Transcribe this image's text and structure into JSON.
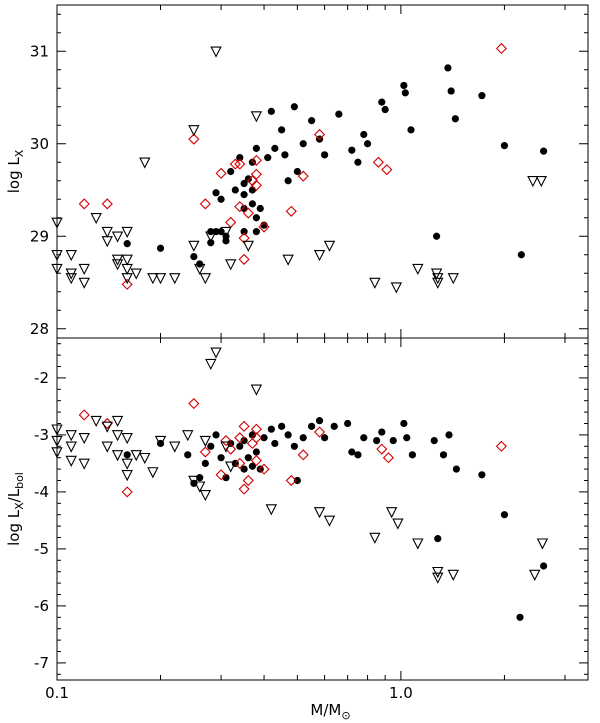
{
  "chart_data": [
    {
      "panel": "top",
      "type": "scatter",
      "xlabel": "M/M⊙",
      "ylabel": "log L_X",
      "xscale": "log",
      "xlim": [
        0.1,
        3.5
      ],
      "ylim": [
        27.9,
        31.5
      ],
      "yticks": [
        28,
        29,
        30,
        31
      ],
      "ytick_labels": [
        "28",
        "29",
        "30",
        "31"
      ],
      "series": [
        {
          "marker": "filled-circle",
          "color": "#000000",
          "points": [
            [
              0.16,
              28.92
            ],
            [
              0.2,
              28.87
            ],
            [
              0.25,
              28.78
            ],
            [
              0.26,
              28.7
            ],
            [
              0.28,
              29.05
            ],
            [
              0.28,
              28.93
            ],
            [
              0.29,
              29.47
            ],
            [
              0.29,
              29.05
            ],
            [
              0.3,
              29.4
            ],
            [
              0.3,
              29.05
            ],
            [
              0.31,
              29.0
            ],
            [
              0.31,
              28.95
            ],
            [
              0.32,
              29.7
            ],
            [
              0.33,
              29.5
            ],
            [
              0.34,
              29.85
            ],
            [
              0.35,
              29.57
            ],
            [
              0.35,
              29.45
            ],
            [
              0.35,
              29.3
            ],
            [
              0.35,
              29.05
            ],
            [
              0.36,
              29.62
            ],
            [
              0.37,
              29.8
            ],
            [
              0.37,
              29.5
            ],
            [
              0.37,
              29.35
            ],
            [
              0.38,
              29.2
            ],
            [
              0.38,
              29.95
            ],
            [
              0.39,
              29.3
            ],
            [
              0.4,
              29.12
            ],
            [
              0.38,
              29.05
            ],
            [
              0.41,
              29.85
            ],
            [
              0.42,
              30.35
            ],
            [
              0.43,
              29.95
            ],
            [
              0.45,
              30.15
            ],
            [
              0.46,
              29.88
            ],
            [
              0.47,
              29.6
            ],
            [
              0.49,
              30.4
            ],
            [
              0.5,
              29.7
            ],
            [
              0.52,
              30.0
            ],
            [
              0.55,
              30.25
            ],
            [
              0.58,
              30.05
            ],
            [
              0.6,
              29.88
            ],
            [
              0.66,
              30.32
            ],
            [
              0.72,
              29.93
            ],
            [
              0.75,
              29.8
            ],
            [
              0.78,
              30.1
            ],
            [
              0.8,
              30.0
            ],
            [
              0.88,
              30.45
            ],
            [
              0.9,
              30.37
            ],
            [
              1.02,
              30.63
            ],
            [
              1.03,
              30.55
            ],
            [
              1.07,
              30.15
            ],
            [
              1.27,
              29.0
            ],
            [
              1.37,
              30.82
            ],
            [
              1.4,
              30.57
            ],
            [
              1.44,
              30.27
            ],
            [
              1.72,
              30.52
            ],
            [
              2.0,
              29.98
            ],
            [
              2.24,
              28.8
            ],
            [
              2.6,
              29.92
            ]
          ]
        },
        {
          "marker": "open-diamond",
          "color": "#d40000",
          "points": [
            [
              0.12,
              29.35
            ],
            [
              0.14,
              29.35
            ],
            [
              0.16,
              28.48
            ],
            [
              0.25,
              30.05
            ],
            [
              0.27,
              29.35
            ],
            [
              0.3,
              29.68
            ],
            [
              0.32,
              29.15
            ],
            [
              0.33,
              29.78
            ],
            [
              0.34,
              29.78
            ],
            [
              0.34,
              29.32
            ],
            [
              0.35,
              28.98
            ],
            [
              0.35,
              28.75
            ],
            [
              0.36,
              29.25
            ],
            [
              0.37,
              29.6
            ],
            [
              0.38,
              29.55
            ],
            [
              0.38,
              29.82
            ],
            [
              0.38,
              29.67
            ],
            [
              0.4,
              29.1
            ],
            [
              0.48,
              29.27
            ],
            [
              0.52,
              29.65
            ],
            [
              0.58,
              30.1
            ],
            [
              0.86,
              29.8
            ],
            [
              0.91,
              29.72
            ],
            [
              1.96,
              31.03
            ]
          ]
        },
        {
          "marker": "open-triangle-down",
          "color": "#000000",
          "points": [
            [
              0.1,
              29.15
            ],
            [
              0.1,
              28.8
            ],
            [
              0.1,
              28.65
            ],
            [
              0.11,
              28.6
            ],
            [
              0.11,
              28.8
            ],
            [
              0.11,
              28.55
            ],
            [
              0.12,
              28.65
            ],
            [
              0.12,
              28.5
            ],
            [
              0.13,
              29.2
            ],
            [
              0.14,
              29.05
            ],
            [
              0.14,
              28.95
            ],
            [
              0.15,
              29.0
            ],
            [
              0.15,
              28.75
            ],
            [
              0.15,
              28.7
            ],
            [
              0.16,
              29.05
            ],
            [
              0.16,
              28.75
            ],
            [
              0.16,
              28.65
            ],
            [
              0.16,
              28.55
            ],
            [
              0.17,
              28.6
            ],
            [
              0.18,
              29.8
            ],
            [
              0.19,
              28.55
            ],
            [
              0.2,
              28.55
            ],
            [
              0.22,
              28.55
            ],
            [
              0.25,
              30.15
            ],
            [
              0.25,
              28.9
            ],
            [
              0.26,
              28.65
            ],
            [
              0.27,
              28.55
            ],
            [
              0.28,
              29.0
            ],
            [
              0.29,
              31.0
            ],
            [
              0.31,
              29.05
            ],
            [
              0.32,
              28.7
            ],
            [
              0.36,
              28.9
            ],
            [
              0.38,
              30.3
            ],
            [
              0.47,
              28.75
            ],
            [
              0.58,
              28.8
            ],
            [
              0.62,
              28.9
            ],
            [
              0.84,
              28.5
            ],
            [
              0.97,
              28.45
            ],
            [
              1.12,
              28.65
            ],
            [
              1.27,
              28.6
            ],
            [
              1.28,
              28.55
            ],
            [
              1.28,
              28.5
            ],
            [
              1.42,
              28.55
            ],
            [
              2.42,
              29.6
            ],
            [
              2.56,
              29.6
            ]
          ]
        }
      ]
    },
    {
      "panel": "bottom",
      "type": "scatter",
      "xlabel": "M/M⊙",
      "ylabel": "log L_X/L_bol",
      "xscale": "log",
      "xlim": [
        0.1,
        3.5
      ],
      "ylim": [
        -7.3,
        -1.3
      ],
      "yticks": [
        -7,
        -6,
        -5,
        -4,
        -3,
        -2
      ],
      "ytick_labels": [
        "-7",
        "-6",
        "-5",
        "-4",
        "-3",
        "-2"
      ],
      "xticks": [
        0.1,
        1.0
      ],
      "xtick_labels": [
        "0.1",
        "1.0"
      ],
      "series": [
        {
          "marker": "filled-circle",
          "color": "#000000",
          "points": [
            [
              0.16,
              -3.35
            ],
            [
              0.2,
              -3.15
            ],
            [
              0.24,
              -3.35
            ],
            [
              0.25,
              -3.85
            ],
            [
              0.26,
              -3.75
            ],
            [
              0.27,
              -3.5
            ],
            [
              0.28,
              -3.2
            ],
            [
              0.29,
              -3.0
            ],
            [
              0.3,
              -3.4
            ],
            [
              0.31,
              -3.75
            ],
            [
              0.32,
              -3.15
            ],
            [
              0.33,
              -3.5
            ],
            [
              0.34,
              -3.2
            ],
            [
              0.35,
              -3.1
            ],
            [
              0.35,
              -3.6
            ],
            [
              0.36,
              -3.4
            ],
            [
              0.37,
              -3.55
            ],
            [
              0.37,
              -3.0
            ],
            [
              0.38,
              -3.3
            ],
            [
              0.39,
              -3.6
            ],
            [
              0.4,
              -3.05
            ],
            [
              0.42,
              -2.9
            ],
            [
              0.43,
              -3.15
            ],
            [
              0.45,
              -2.85
            ],
            [
              0.47,
              -3.0
            ],
            [
              0.49,
              -3.2
            ],
            [
              0.5,
              -3.8
            ],
            [
              0.52,
              -3.05
            ],
            [
              0.55,
              -2.85
            ],
            [
              0.58,
              -2.75
            ],
            [
              0.6,
              -3.05
            ],
            [
              0.64,
              -2.85
            ],
            [
              0.7,
              -2.8
            ],
            [
              0.72,
              -3.3
            ],
            [
              0.75,
              -3.35
            ],
            [
              0.78,
              -3.05
            ],
            [
              0.85,
              -3.1
            ],
            [
              0.88,
              -2.95
            ],
            [
              0.95,
              -3.1
            ],
            [
              1.02,
              -2.8
            ],
            [
              1.04,
              -3.05
            ],
            [
              1.08,
              -3.35
            ],
            [
              1.25,
              -3.1
            ],
            [
              1.28,
              -4.82
            ],
            [
              1.33,
              -3.35
            ],
            [
              1.38,
              -3.0
            ],
            [
              1.45,
              -3.6
            ],
            [
              1.72,
              -3.7
            ],
            [
              2.0,
              -4.4
            ],
            [
              2.22,
              -6.2
            ],
            [
              2.6,
              -5.3
            ]
          ]
        },
        {
          "marker": "open-diamond",
          "color": "#d40000",
          "points": [
            [
              0.12,
              -2.65
            ],
            [
              0.14,
              -2.8
            ],
            [
              0.16,
              -4.0
            ],
            [
              0.25,
              -2.45
            ],
            [
              0.27,
              -3.3
            ],
            [
              0.3,
              -3.7
            ],
            [
              0.31,
              -3.1
            ],
            [
              0.32,
              -3.25
            ],
            [
              0.34,
              -3.5
            ],
            [
              0.34,
              -3.05
            ],
            [
              0.35,
              -2.85
            ],
            [
              0.35,
              -3.95
            ],
            [
              0.36,
              -3.8
            ],
            [
              0.37,
              -3.15
            ],
            [
              0.38,
              -3.45
            ],
            [
              0.38,
              -3.05
            ],
            [
              0.38,
              -2.9
            ],
            [
              0.4,
              -3.6
            ],
            [
              0.48,
              -3.8
            ],
            [
              0.52,
              -3.35
            ],
            [
              0.58,
              -2.95
            ],
            [
              0.88,
              -3.25
            ],
            [
              0.92,
              -3.4
            ],
            [
              1.96,
              -3.2
            ]
          ]
        },
        {
          "marker": "open-triangle-down",
          "color": "#000000",
          "points": [
            [
              0.1,
              -2.9
            ],
            [
              0.1,
              -3.1
            ],
            [
              0.1,
              -3.3
            ],
            [
              0.11,
              -3.0
            ],
            [
              0.11,
              -3.2
            ],
            [
              0.11,
              -3.45
            ],
            [
              0.12,
              -3.05
            ],
            [
              0.12,
              -3.5
            ],
            [
              0.13,
              -2.75
            ],
            [
              0.14,
              -2.85
            ],
            [
              0.14,
              -3.2
            ],
            [
              0.15,
              -3.0
            ],
            [
              0.15,
              -3.35
            ],
            [
              0.15,
              -2.75
            ],
            [
              0.16,
              -3.05
            ],
            [
              0.16,
              -3.5
            ],
            [
              0.16,
              -3.7
            ],
            [
              0.17,
              -3.35
            ],
            [
              0.18,
              -3.4
            ],
            [
              0.19,
              -3.65
            ],
            [
              0.2,
              -3.1
            ],
            [
              0.22,
              -3.2
            ],
            [
              0.24,
              -3.0
            ],
            [
              0.25,
              -3.8
            ],
            [
              0.26,
              -3.9
            ],
            [
              0.27,
              -4.05
            ],
            [
              0.27,
              -3.1
            ],
            [
              0.28,
              -1.75
            ],
            [
              0.29,
              -1.55
            ],
            [
              0.31,
              -3.2
            ],
            [
              0.32,
              -3.55
            ],
            [
              0.38,
              -2.2
            ],
            [
              0.42,
              -4.3
            ],
            [
              0.58,
              -4.35
            ],
            [
              0.62,
              -4.5
            ],
            [
              0.84,
              -4.8
            ],
            [
              0.94,
              -4.35
            ],
            [
              0.98,
              -4.55
            ],
            [
              1.12,
              -4.9
            ],
            [
              1.28,
              -5.4
            ],
            [
              1.28,
              -5.5
            ],
            [
              1.42,
              -5.45
            ],
            [
              2.45,
              -5.45
            ],
            [
              2.58,
              -4.9
            ]
          ]
        }
      ]
    }
  ]
}
